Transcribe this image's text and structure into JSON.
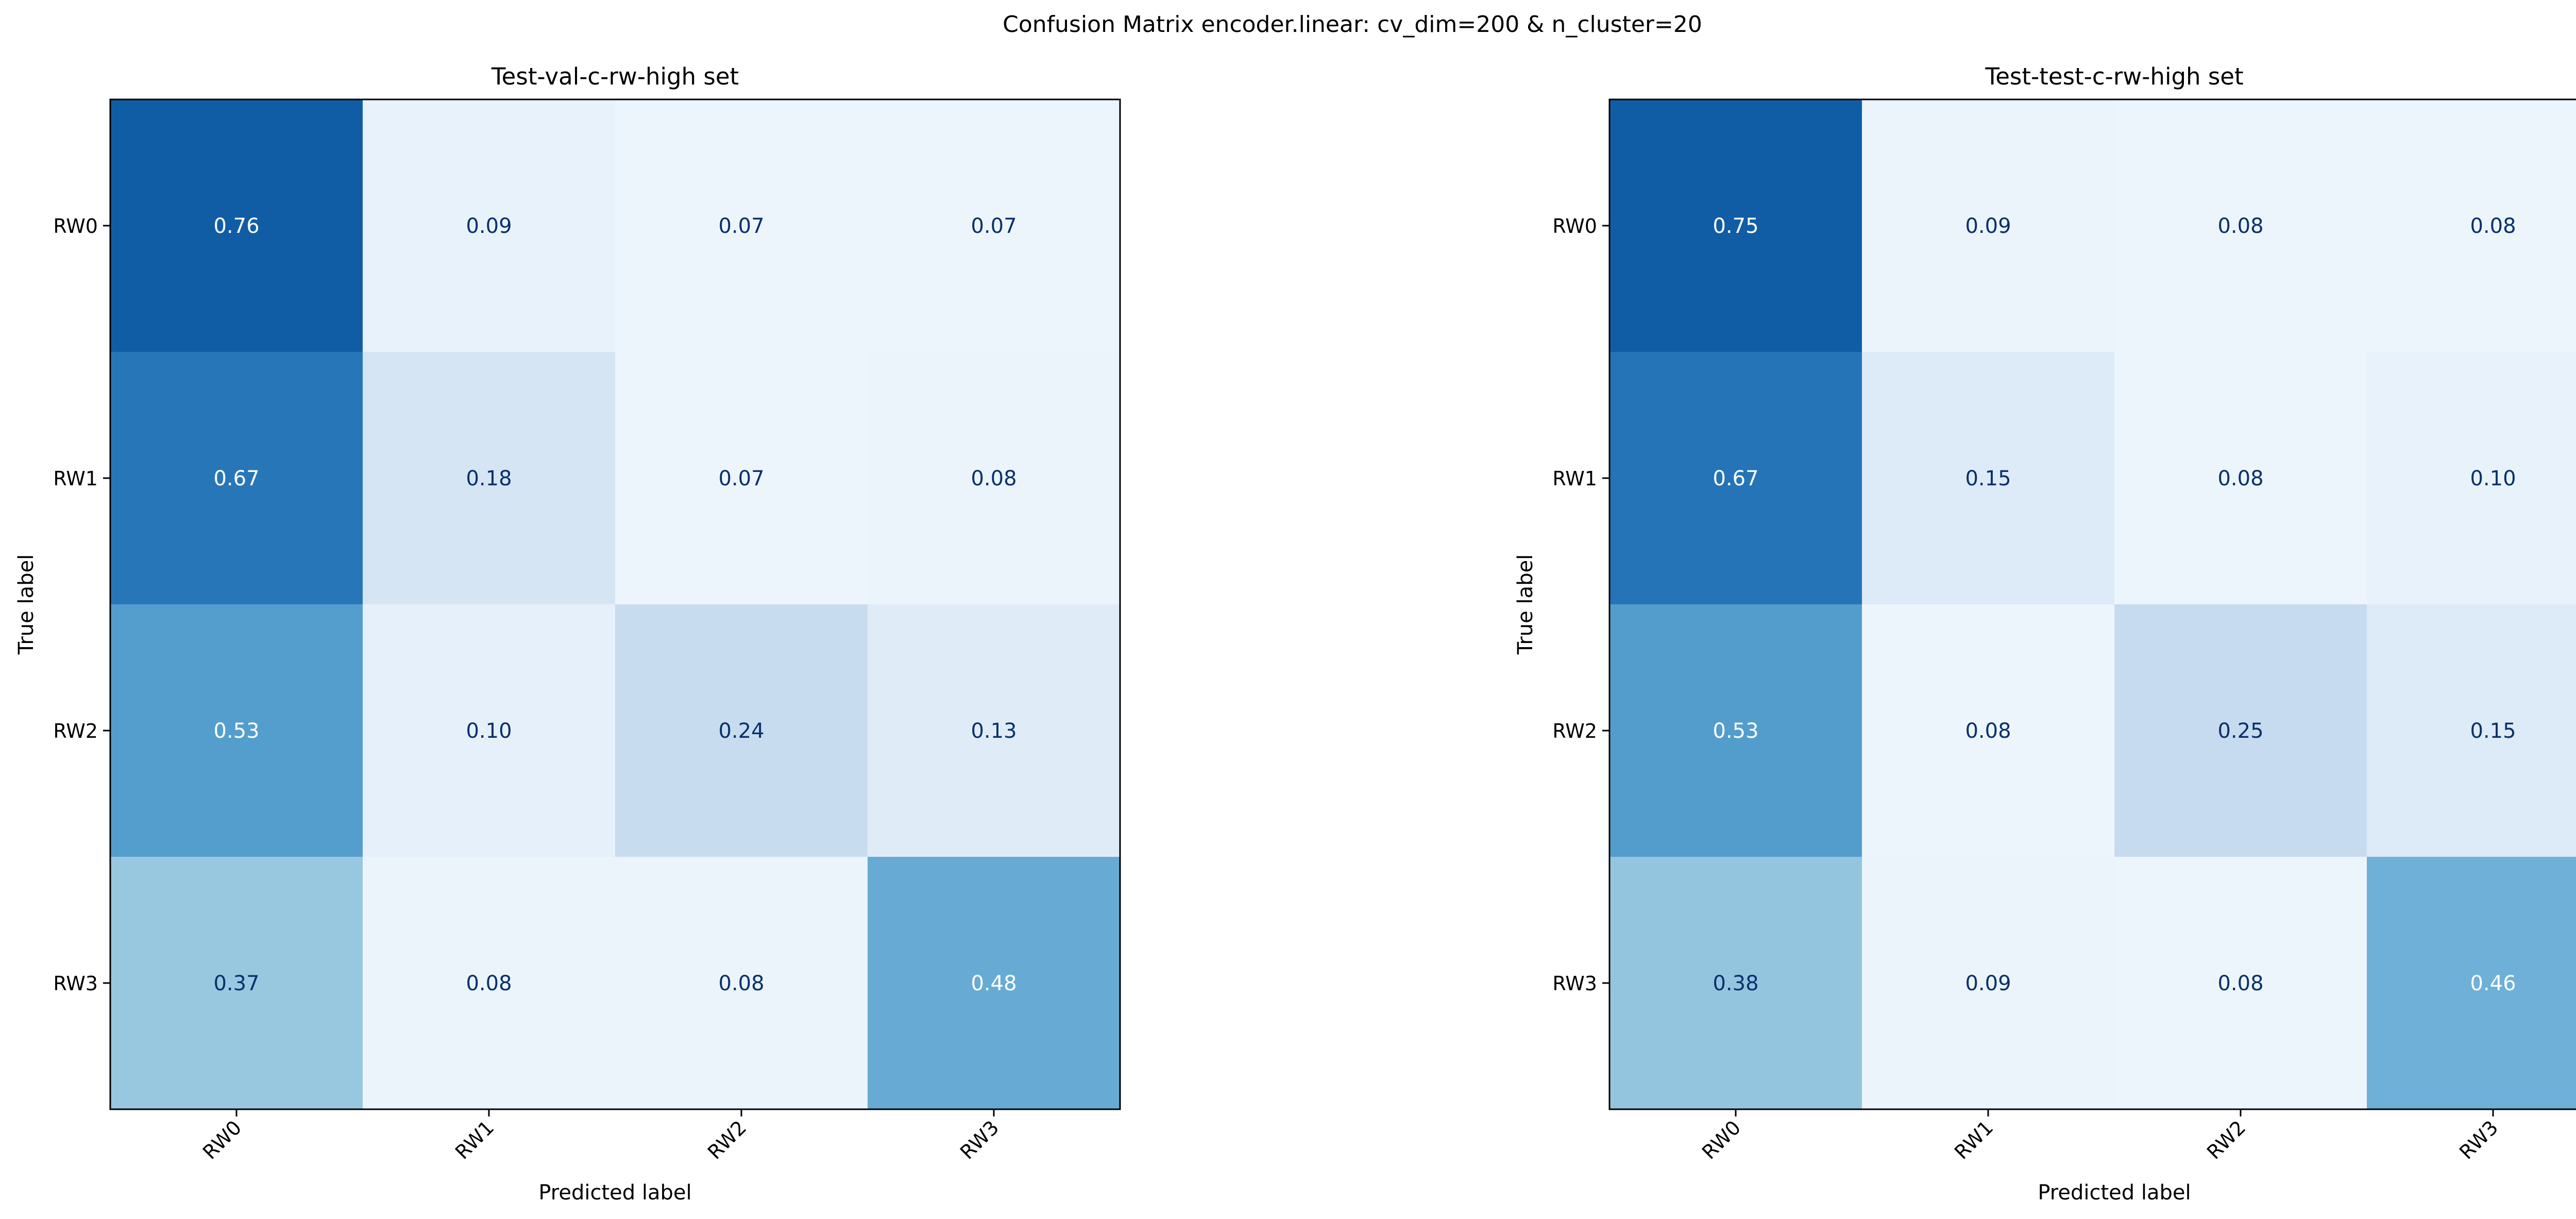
{
  "suptitle": "Confusion Matrix encoder.linear: cv_dim=200 & n_cluster=20",
  "chart_data": [
    {
      "type": "heatmap",
      "title": "Test-val-c-rw-high set",
      "xlabel": "Predicted label",
      "ylabel": "True label",
      "x_categories": [
        "RW0",
        "RW1",
        "RW2",
        "RW3"
      ],
      "y_categories": [
        "RW0",
        "RW1",
        "RW2",
        "RW3"
      ],
      "colormap": "Blues",
      "values": [
        [
          0.76,
          0.09,
          0.07,
          0.07
        ],
        [
          0.67,
          0.18,
          0.07,
          0.08
        ],
        [
          0.53,
          0.1,
          0.24,
          0.13
        ],
        [
          0.37,
          0.08,
          0.08,
          0.48
        ]
      ]
    },
    {
      "type": "heatmap",
      "title": "Test-test-c-rw-high set",
      "xlabel": "Predicted label",
      "ylabel": "True label",
      "x_categories": [
        "RW0",
        "RW1",
        "RW2",
        "RW3"
      ],
      "y_categories": [
        "RW0",
        "RW1",
        "RW2",
        "RW3"
      ],
      "colormap": "Blues",
      "values": [
        [
          0.75,
          0.09,
          0.08,
          0.08
        ],
        [
          0.67,
          0.15,
          0.08,
          0.1
        ],
        [
          0.53,
          0.08,
          0.25,
          0.15
        ],
        [
          0.38,
          0.09,
          0.08,
          0.46
        ]
      ]
    }
  ]
}
